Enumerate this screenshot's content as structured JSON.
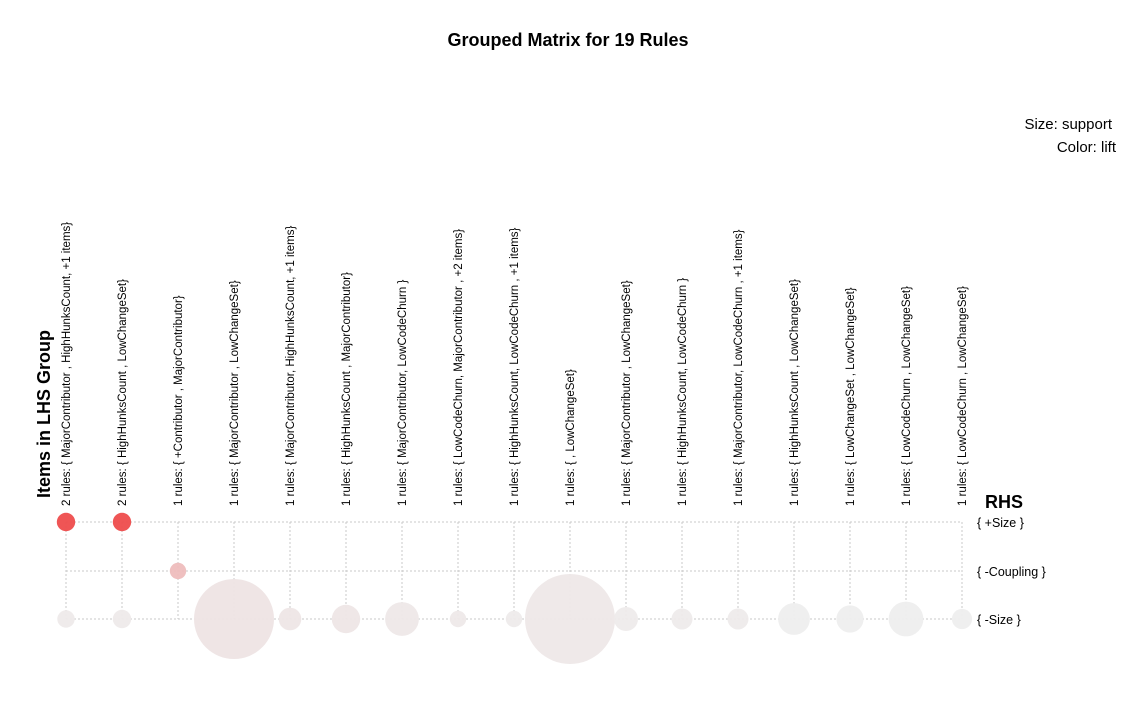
{
  "chart_data": {
    "type": "grouped-matrix-bubble",
    "title": "Grouped Matrix for 19 Rules",
    "legend": {
      "size_label": "Size: support",
      "color_label": "Color: lift"
    },
    "ylabel": "Items in LHS Group",
    "xlabel": "RHS",
    "lhs_groups": [
      "2 rules: { MajorContributor ,  HighHunksCount, +1 items}",
      "2 rules: { HighHunksCount ,  LowChangeSet}",
      "1 rules: { +Contributor ,  MajorContributor}",
      "1 rules: { MajorContributor ,  LowChangeSet}",
      "1 rules: { MajorContributor,  HighHunksCount, +1 items}",
      "1 rules: { HighHunksCount ,  MajorContributor}",
      "1 rules: { MajorContributor,  LowCodeChurn }",
      "1 rules: { LowCodeChurn,  MajorContributor ,  +2 items}",
      "1 rules: { HighHunksCount,  LowCodeChurn ,  +1 items}",
      "1 rules: {  ,  LowChangeSet}",
      "1 rules: { MajorContributor ,  LowChangeSet}",
      "1 rules: { HighHunksCount,  LowCodeChurn }",
      "1 rules: { MajorContributor,  LowCodeChurn ,  +1 items}",
      "1 rules: { HighHunksCount ,  LowChangeSet}",
      "1 rules: { LowChangeSet ,  LowChangeSet}",
      "1 rules: { LowCodeChurn ,  LowChangeSet}",
      "1 rules: { LowCodeChurn ,  LowChangeSet}"
    ],
    "rhs_items": [
      "{ +Size }",
      "{ -Coupling }",
      "{ -Size }"
    ],
    "points": [
      {
        "lhs": 0,
        "rhs": 0,
        "support": 0.01,
        "lift": 3.0
      },
      {
        "lhs": 1,
        "rhs": 0,
        "support": 0.01,
        "lift": 3.0
      },
      {
        "lhs": 2,
        "rhs": 1,
        "support": 0.008,
        "lift": 1.6
      },
      {
        "lhs": 0,
        "rhs": 2,
        "support": 0.009,
        "lift": 1.05
      },
      {
        "lhs": 1,
        "rhs": 2,
        "support": 0.01,
        "lift": 1.05
      },
      {
        "lhs": 3,
        "rhs": 2,
        "support": 0.19,
        "lift": 1.12
      },
      {
        "lhs": 4,
        "rhs": 2,
        "support": 0.015,
        "lift": 1.1
      },
      {
        "lhs": 5,
        "rhs": 2,
        "support": 0.024,
        "lift": 1.1
      },
      {
        "lhs": 6,
        "rhs": 2,
        "support": 0.034,
        "lift": 1.08
      },
      {
        "lhs": 7,
        "rhs": 2,
        "support": 0.008,
        "lift": 1.06
      },
      {
        "lhs": 8,
        "rhs": 2,
        "support": 0.008,
        "lift": 1.04
      },
      {
        "lhs": 9,
        "rhs": 2,
        "support": 0.24,
        "lift": 1.08
      },
      {
        "lhs": 10,
        "rhs": 2,
        "support": 0.017,
        "lift": 1.04
      },
      {
        "lhs": 11,
        "rhs": 2,
        "support": 0.013,
        "lift": 1.04
      },
      {
        "lhs": 12,
        "rhs": 2,
        "support": 0.013,
        "lift": 1.04
      },
      {
        "lhs": 13,
        "rhs": 2,
        "support": 0.03,
        "lift": 1.0
      },
      {
        "lhs": 14,
        "rhs": 2,
        "support": 0.022,
        "lift": 1.0
      },
      {
        "lhs": 15,
        "rhs": 2,
        "support": 0.036,
        "lift": 1.0
      },
      {
        "lhs": 16,
        "rhs": 2,
        "support": 0.012,
        "lift": 1.0
      }
    ]
  }
}
